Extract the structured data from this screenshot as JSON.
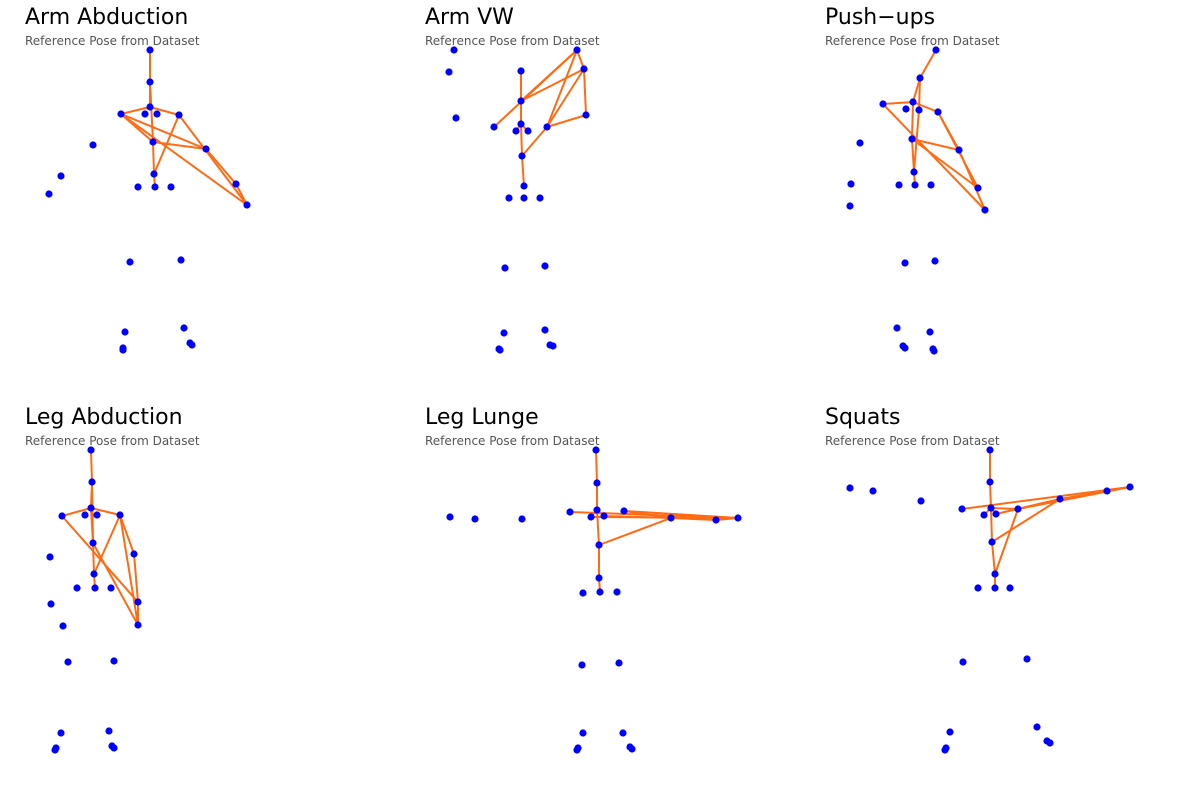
{
  "colors": {
    "joint": "#0000ff",
    "bone": "#ff6a13"
  },
  "panels": [
    {
      "title": "Arm Abduction",
      "subtitle": "Reference Pose from Dataset",
      "points": [
        [
          150,
          50
        ],
        [
          150,
          82
        ],
        [
          150,
          107
        ],
        [
          121,
          114
        ],
        [
          145,
          114
        ],
        [
          157,
          114
        ],
        [
          179,
          115
        ],
        [
          153,
          142
        ],
        [
          206,
          149
        ],
        [
          236,
          184
        ],
        [
          247,
          205
        ],
        [
          154,
          174
        ],
        [
          155,
          187
        ],
        [
          138,
          187
        ],
        [
          171,
          187
        ],
        [
          93,
          145
        ],
        [
          61,
          176
        ],
        [
          49,
          194
        ],
        [
          130,
          262
        ],
        [
          181,
          260
        ],
        [
          125,
          332
        ],
        [
          184,
          328
        ],
        [
          123,
          348
        ],
        [
          123,
          350
        ],
        [
          190,
          343
        ],
        [
          192,
          345
        ]
      ],
      "bones": [
        [
          0,
          1
        ],
        [
          1,
          2
        ],
        [
          2,
          3
        ],
        [
          2,
          6
        ],
        [
          1,
          7
        ],
        [
          3,
          7
        ],
        [
          7,
          8
        ],
        [
          8,
          9
        ],
        [
          9,
          10
        ],
        [
          6,
          10
        ],
        [
          3,
          10
        ],
        [
          8,
          3
        ],
        [
          6,
          11
        ],
        [
          7,
          11
        ],
        [
          11,
          12
        ]
      ]
    },
    {
      "title": "Arm VW",
      "subtitle": "Reference Pose from Dataset",
      "points": [
        [
          454,
          50
        ],
        [
          449,
          72
        ],
        [
          456,
          118
        ],
        [
          521,
          71
        ],
        [
          521,
          101
        ],
        [
          577,
          50
        ],
        [
          584,
          69
        ],
        [
          586,
          115
        ],
        [
          494,
          127
        ],
        [
          516,
          131
        ],
        [
          521,
          124
        ],
        [
          528,
          131
        ],
        [
          547,
          127
        ],
        [
          522,
          156
        ],
        [
          524,
          186
        ],
        [
          509,
          198
        ],
        [
          524,
          198
        ],
        [
          540,
          198
        ],
        [
          505,
          268
        ],
        [
          545,
          266
        ],
        [
          504,
          333
        ],
        [
          545,
          330
        ],
        [
          499,
          349
        ],
        [
          500,
          350
        ],
        [
          550,
          345
        ],
        [
          553,
          346
        ]
      ],
      "bones": [
        [
          3,
          4
        ],
        [
          4,
          5
        ],
        [
          5,
          6
        ],
        [
          6,
          4
        ],
        [
          6,
          7
        ],
        [
          7,
          12
        ],
        [
          4,
          10
        ],
        [
          10,
          13
        ],
        [
          13,
          14
        ],
        [
          5,
          8
        ],
        [
          12,
          13
        ],
        [
          5,
          12
        ],
        [
          6,
          12
        ],
        [
          10,
          9
        ],
        [
          10,
          11
        ]
      ]
    },
    {
      "title": "Push−ups",
      "subtitle": "Reference Pose from Dataset",
      "points": [
        [
          936,
          50
        ],
        [
          920,
          78
        ],
        [
          913,
          102
        ],
        [
          883,
          104
        ],
        [
          906,
          109
        ],
        [
          919,
          110
        ],
        [
          938,
          112
        ],
        [
          912,
          139
        ],
        [
          959,
          150
        ],
        [
          978,
          188
        ],
        [
          985,
          210
        ],
        [
          914,
          172
        ],
        [
          915,
          185
        ],
        [
          899,
          185
        ],
        [
          931,
          185
        ],
        [
          860,
          143
        ],
        [
          851,
          184
        ],
        [
          850,
          206
        ],
        [
          905,
          263
        ],
        [
          935,
          261
        ],
        [
          897,
          328
        ],
        [
          930,
          332
        ],
        [
          903,
          346
        ],
        [
          905,
          348
        ],
        [
          933,
          349
        ],
        [
          934,
          351
        ]
      ],
      "bones": [
        [
          0,
          1
        ],
        [
          1,
          2
        ],
        [
          2,
          7
        ],
        [
          7,
          11
        ],
        [
          11,
          12
        ],
        [
          2,
          3
        ],
        [
          3,
          10
        ],
        [
          2,
          6
        ],
        [
          6,
          8
        ],
        [
          8,
          10
        ],
        [
          6,
          9
        ],
        [
          7,
          9
        ],
        [
          7,
          8
        ],
        [
          1,
          5
        ],
        [
          5,
          11
        ]
      ]
    },
    {
      "title": "Leg Abduction",
      "subtitle": "Reference Pose from Dataset",
      "points": [
        [
          91,
          450
        ],
        [
          92,
          482
        ],
        [
          91,
          508
        ],
        [
          62,
          516
        ],
        [
          85,
          515
        ],
        [
          97,
          515
        ],
        [
          120,
          515
        ],
        [
          93,
          543
        ],
        [
          134,
          554
        ],
        [
          138,
          602
        ],
        [
          138,
          625
        ],
        [
          94,
          574
        ],
        [
          95,
          588
        ],
        [
          77,
          588
        ],
        [
          111,
          588
        ],
        [
          50,
          557
        ],
        [
          51,
          604
        ],
        [
          63,
          626
        ],
        [
          68,
          662
        ],
        [
          114,
          661
        ],
        [
          61,
          733
        ],
        [
          109,
          731
        ],
        [
          56,
          748
        ],
        [
          55,
          750
        ],
        [
          112,
          746
        ],
        [
          114,
          748
        ]
      ],
      "bones": [
        [
          0,
          1
        ],
        [
          1,
          2
        ],
        [
          1,
          7
        ],
        [
          3,
          9
        ],
        [
          2,
          6
        ],
        [
          6,
          8
        ],
        [
          8,
          9
        ],
        [
          9,
          10
        ],
        [
          6,
          10
        ],
        [
          7,
          11
        ],
        [
          11,
          12
        ],
        [
          3,
          2
        ],
        [
          7,
          10
        ],
        [
          11,
          6
        ],
        [
          2,
          7
        ]
      ]
    },
    {
      "title": "Leg Lunge",
      "subtitle": "Reference Pose from Dataset",
      "points": [
        [
          596,
          450
        ],
        [
          597,
          483
        ],
        [
          597,
          510
        ],
        [
          570,
          512
        ],
        [
          591,
          517
        ],
        [
          604,
          516
        ],
        [
          624,
          511
        ],
        [
          599,
          545
        ],
        [
          671,
          518
        ],
        [
          716,
          520
        ],
        [
          738,
          518
        ],
        [
          599,
          578
        ],
        [
          600,
          592
        ],
        [
          583,
          593
        ],
        [
          617,
          592
        ],
        [
          450,
          517
        ],
        [
          475,
          519
        ],
        [
          522,
          519
        ],
        [
          582,
          665
        ],
        [
          619,
          663
        ],
        [
          583,
          733
        ],
        [
          623,
          733
        ],
        [
          578,
          748
        ],
        [
          577,
          750
        ],
        [
          630,
          747
        ],
        [
          632,
          749
        ]
      ],
      "bones": [
        [
          0,
          1
        ],
        [
          1,
          2
        ],
        [
          2,
          7
        ],
        [
          7,
          11
        ],
        [
          11,
          12
        ],
        [
          3,
          10
        ],
        [
          2,
          5
        ],
        [
          2,
          4
        ],
        [
          5,
          8
        ],
        [
          8,
          9
        ],
        [
          9,
          10
        ],
        [
          6,
          8
        ],
        [
          6,
          10
        ],
        [
          7,
          8
        ],
        [
          4,
          10
        ]
      ]
    },
    {
      "title": "Squats",
      "subtitle": "Reference Pose from Dataset",
      "points": [
        [
          990,
          450
        ],
        [
          990,
          482
        ],
        [
          991,
          508
        ],
        [
          962,
          509
        ],
        [
          984,
          515
        ],
        [
          996,
          514
        ],
        [
          1018,
          509
        ],
        [
          992,
          542
        ],
        [
          1060,
          499
        ],
        [
          1107,
          491
        ],
        [
          1130,
          487
        ],
        [
          995,
          574
        ],
        [
          995,
          588
        ],
        [
          978,
          588
        ],
        [
          1010,
          588
        ],
        [
          850,
          488
        ],
        [
          873,
          491
        ],
        [
          921,
          501
        ],
        [
          963,
          662
        ],
        [
          1027,
          659
        ],
        [
          950,
          732
        ],
        [
          1037,
          727
        ],
        [
          946,
          748
        ],
        [
          945,
          750
        ],
        [
          1047,
          741
        ],
        [
          1050,
          743
        ]
      ],
      "bones": [
        [
          0,
          1
        ],
        [
          1,
          2
        ],
        [
          2,
          7
        ],
        [
          7,
          11
        ],
        [
          11,
          12
        ],
        [
          3,
          10
        ],
        [
          2,
          5
        ],
        [
          5,
          8
        ],
        [
          8,
          9
        ],
        [
          9,
          10
        ],
        [
          6,
          10
        ],
        [
          7,
          8
        ],
        [
          4,
          2
        ],
        [
          6,
          11
        ],
        [
          2,
          6
        ]
      ]
    }
  ]
}
